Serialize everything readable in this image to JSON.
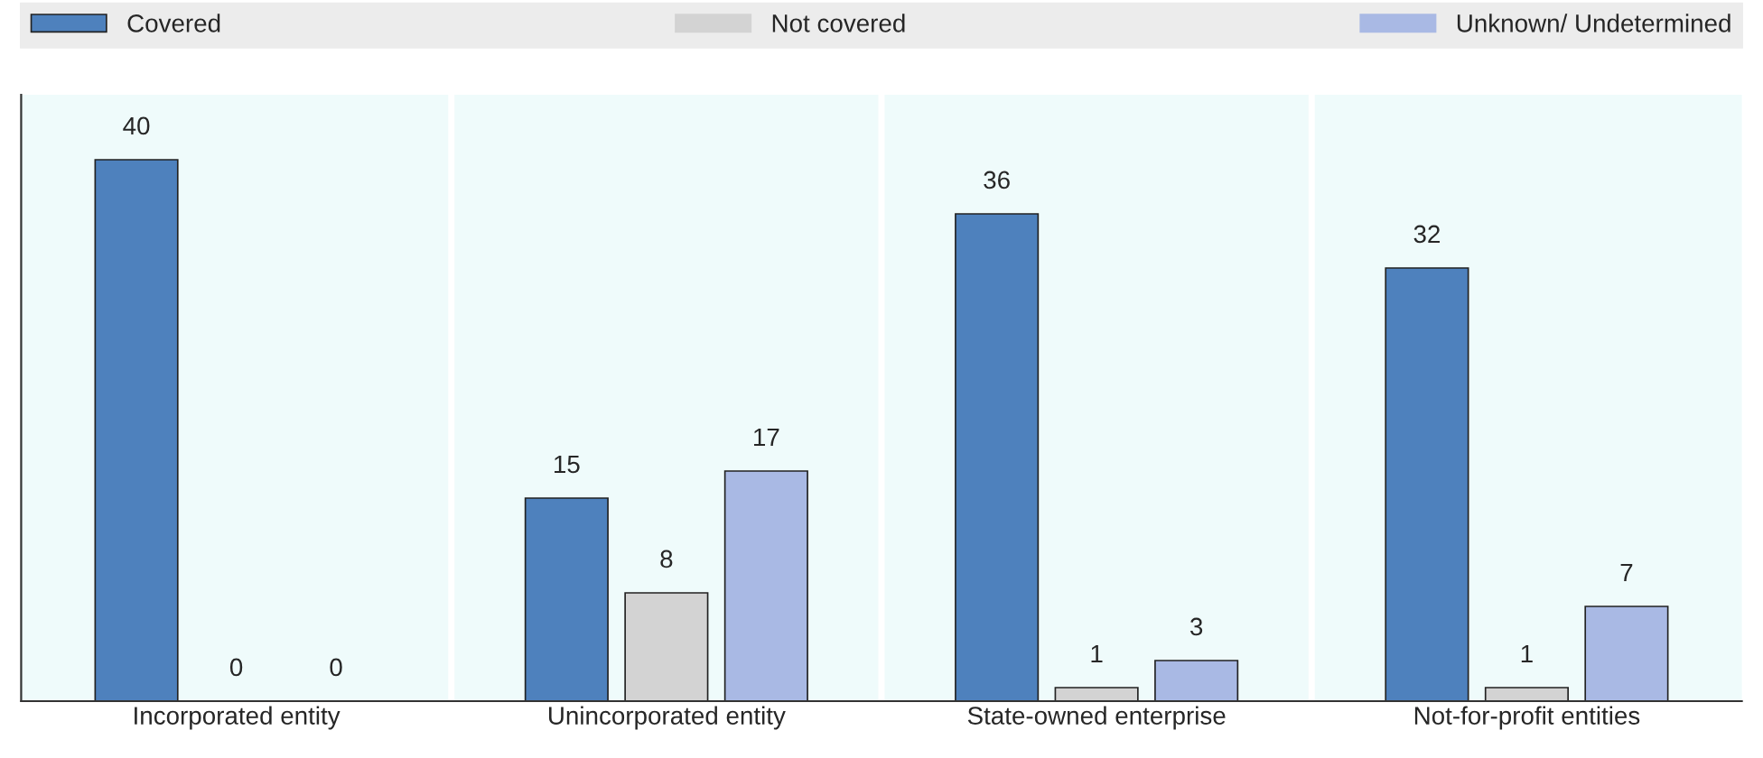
{
  "chart_data": {
    "type": "bar",
    "categories": [
      "Incorporated entity",
      "Unincorporated entity",
      "State-owned enterprise",
      "Not-for-profit entities"
    ],
    "series": [
      {
        "name": "Covered",
        "color": "#4e81bd",
        "values": [
          40,
          15,
          36,
          32
        ]
      },
      {
        "name": "Not covered",
        "color": "#d3d3d3",
        "values": [
          0,
          8,
          1,
          1
        ]
      },
      {
        "name": "Unknown/ Undetermined",
        "color": "#a9b9e4",
        "values": [
          0,
          17,
          3,
          7
        ]
      }
    ],
    "data_labels": true,
    "legend": "top",
    "grid": false
  }
}
